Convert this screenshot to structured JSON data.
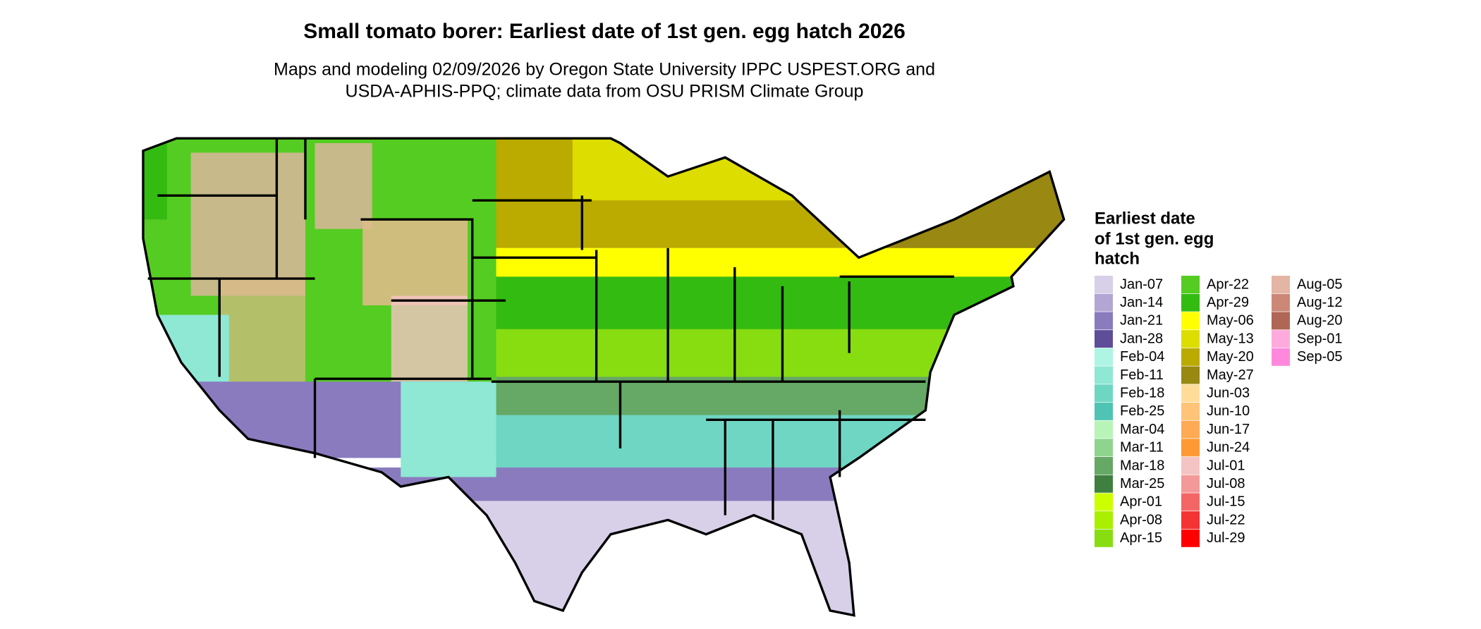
{
  "header": {
    "title": "Small tomato borer: Earliest date of 1st gen. egg hatch 2026",
    "subtitle": [
      "Maps and modeling 02/09/2026 by Oregon State University IPPC USPEST.ORG and",
      "USDA-APHIS-PPQ; climate data from OSU PRISM Climate Group"
    ]
  },
  "legend": {
    "title": [
      "Earliest date",
      "of 1st gen. egg",
      "hatch"
    ],
    "entries": [
      {
        "label": "Jan-07",
        "color": "#d8d0e8"
      },
      {
        "label": "Jan-14",
        "color": "#b3a6d4"
      },
      {
        "label": "Jan-21",
        "color": "#8a7bbf"
      },
      {
        "label": "Jan-28",
        "color": "#5e4e9a"
      },
      {
        "label": "Feb-04",
        "color": "#aef5e4"
      },
      {
        "label": "Feb-11",
        "color": "#8ee8d4"
      },
      {
        "label": "Feb-18",
        "color": "#6fd6c4"
      },
      {
        "label": "Feb-25",
        "color": "#4fc4b4"
      },
      {
        "label": "Mar-04",
        "color": "#b8f4b8"
      },
      {
        "label": "Mar-11",
        "color": "#8ed48e"
      },
      {
        "label": "Mar-18",
        "color": "#66a866"
      },
      {
        "label": "Mar-25",
        "color": "#3f7f3f"
      },
      {
        "label": "Apr-01",
        "color": "#ccff00"
      },
      {
        "label": "Apr-08",
        "color": "#aaee00"
      },
      {
        "label": "Apr-15",
        "color": "#88dd11"
      },
      {
        "label": "Apr-22",
        "color": "#55cc22"
      },
      {
        "label": "Apr-29",
        "color": "#33bb11"
      },
      {
        "label": "May-06",
        "color": "#ffff00"
      },
      {
        "label": "May-13",
        "color": "#dddd00"
      },
      {
        "label": "May-20",
        "color": "#bbaa00"
      },
      {
        "label": "May-27",
        "color": "#998811"
      },
      {
        "label": "Jun-03",
        "color": "#ffdd99"
      },
      {
        "label": "Jun-10",
        "color": "#ffc477"
      },
      {
        "label": "Jun-17",
        "color": "#ffaa55"
      },
      {
        "label": "Jun-24",
        "color": "#ff9933"
      },
      {
        "label": "Jul-01",
        "color": "#f4c4c4"
      },
      {
        "label": "Jul-08",
        "color": "#f49999"
      },
      {
        "label": "Jul-15",
        "color": "#f46666"
      },
      {
        "label": "Jul-22",
        "color": "#f43333"
      },
      {
        "label": "Jul-29",
        "color": "#ff0000"
      },
      {
        "label": "Aug-05",
        "color": "#e4b4a4"
      },
      {
        "label": "Aug-12",
        "color": "#cc8877"
      },
      {
        "label": "Aug-20",
        "color": "#b06655"
      },
      {
        "label": "Sep-01",
        "color": "#ffaadd"
      },
      {
        "label": "Sep-05",
        "color": "#ff88dd"
      }
    ]
  }
}
